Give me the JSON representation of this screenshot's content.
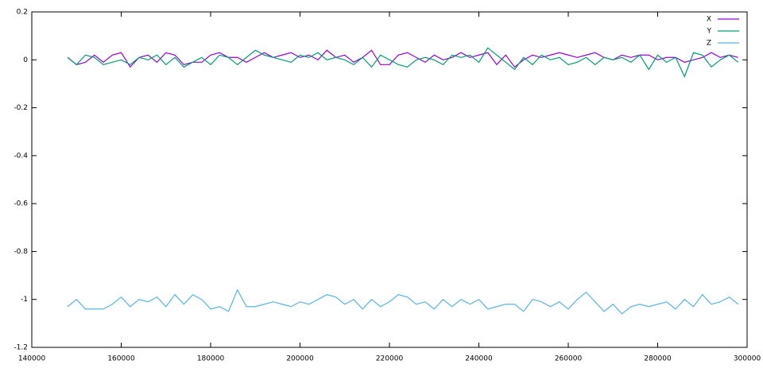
{
  "chart_data": {
    "type": "line",
    "x": [
      148000,
      150000,
      152000,
      154000,
      156000,
      158000,
      160000,
      162000,
      164000,
      166000,
      168000,
      170000,
      172000,
      174000,
      176000,
      178000,
      180000,
      182000,
      184000,
      186000,
      188000,
      190000,
      192000,
      194000,
      196000,
      198000,
      200000,
      202000,
      204000,
      206000,
      208000,
      210000,
      212000,
      214000,
      216000,
      218000,
      220000,
      222000,
      224000,
      226000,
      228000,
      230000,
      232000,
      234000,
      236000,
      238000,
      240000,
      242000,
      244000,
      246000,
      248000,
      250000,
      252000,
      254000,
      256000,
      258000,
      260000,
      262000,
      264000,
      266000,
      268000,
      270000,
      272000,
      274000,
      276000,
      278000,
      280000,
      282000,
      284000,
      286000,
      288000,
      290000,
      292000,
      294000,
      296000,
      298000
    ],
    "series": [
      {
        "name": "X",
        "color": "#9400d3",
        "values": [
          0.01,
          -0.02,
          -0.01,
          0.02,
          -0.01,
          0.02,
          0.03,
          -0.03,
          0.01,
          0.02,
          -0.01,
          0.03,
          0.02,
          -0.02,
          -0.01,
          -0.01,
          0.02,
          0.03,
          0.01,
          0.01,
          -0.01,
          0.01,
          0.03,
          0.01,
          0.02,
          0.03,
          0.01,
          0.02,
          0,
          0.04,
          0.01,
          0.02,
          -0.01,
          0.01,
          0.04,
          -0.02,
          -0.02,
          0.02,
          0.03,
          0.01,
          -0.01,
          0.02,
          0,
          0.01,
          0.03,
          0.01,
          0.02,
          0.03,
          -0.02,
          0.02,
          -0.03,
          0,
          0.02,
          0.01,
          0.02,
          0.03,
          0.02,
          0.01,
          0.02,
          0.03,
          0.01,
          0,
          0.02,
          0.01,
          0.02,
          0.02,
          0,
          0.01,
          0.01,
          -0.01,
          0,
          0.01,
          0.03,
          0.01,
          0.02,
          0.01
        ]
      },
      {
        "name": "Y",
        "color": "#009e73",
        "values": [
          0.01,
          -0.02,
          0.02,
          0.01,
          -0.02,
          -0.01,
          0,
          -0.02,
          0.01,
          0,
          0.02,
          -0.02,
          0.01,
          -0.03,
          -0.01,
          0.01,
          -0.02,
          0.02,
          0.01,
          -0.02,
          0.01,
          0.04,
          0.02,
          0.01,
          0,
          -0.01,
          0.02,
          0.01,
          0.03,
          0,
          0.01,
          0,
          -0.02,
          0.01,
          -0.03,
          0.02,
          0,
          -0.02,
          -0.03,
          0,
          0.01,
          0,
          -0.02,
          0.02,
          0.01,
          0.02,
          -0.01,
          0.05,
          0.02,
          -0.01,
          -0.04,
          0.01,
          -0.02,
          0.02,
          0,
          0.01,
          -0.02,
          -0.01,
          0.01,
          -0.02,
          0.01,
          0,
          0.01,
          -0.01,
          0.02,
          -0.04,
          0.02,
          -0.01,
          0.01,
          -0.07,
          0.03,
          0.02,
          -0.03,
          0,
          0.02,
          -0.01
        ]
      },
      {
        "name": "Z",
        "color": "#56b4e9",
        "values": [
          -1.03,
          -1.0,
          -1.04,
          -1.04,
          -1.04,
          -1.02,
          -0.99,
          -1.03,
          -1.0,
          -1.01,
          -0.99,
          -1.03,
          -0.98,
          -1.02,
          -0.98,
          -1.0,
          -1.04,
          -1.03,
          -1.05,
          -0.96,
          -1.03,
          -1.03,
          -1.02,
          -1.01,
          -1.02,
          -1.03,
          -1.01,
          -1.02,
          -1.0,
          -0.98,
          -0.99,
          -1.02,
          -1.0,
          -1.04,
          -1.0,
          -1.03,
          -1.01,
          -0.98,
          -0.99,
          -1.02,
          -1.01,
          -1.04,
          -1.0,
          -1.03,
          -1.0,
          -1.02,
          -1.0,
          -1.04,
          -1.03,
          -1.02,
          -1.02,
          -1.05,
          -1.0,
          -1.01,
          -1.03,
          -1.01,
          -1.04,
          -1.0,
          -0.97,
          -1.01,
          -1.05,
          -1.02,
          -1.06,
          -1.03,
          -1.02,
          -1.03,
          -1.02,
          -1.01,
          -1.04,
          -1.0,
          -1.03,
          -0.98,
          -1.02,
          -1.01,
          -0.99,
          -1.02
        ]
      }
    ],
    "xlim": [
      140000,
      300000
    ],
    "xticks": [
      140000,
      160000,
      180000,
      200000,
      220000,
      240000,
      260000,
      280000,
      300000
    ],
    "ylim": [
      -1.2,
      0.2
    ],
    "yticks": [
      0.2,
      0,
      -0.2,
      -0.4,
      -0.6,
      -0.8,
      -1,
      -1.2
    ],
    "legend": "top-right"
  }
}
